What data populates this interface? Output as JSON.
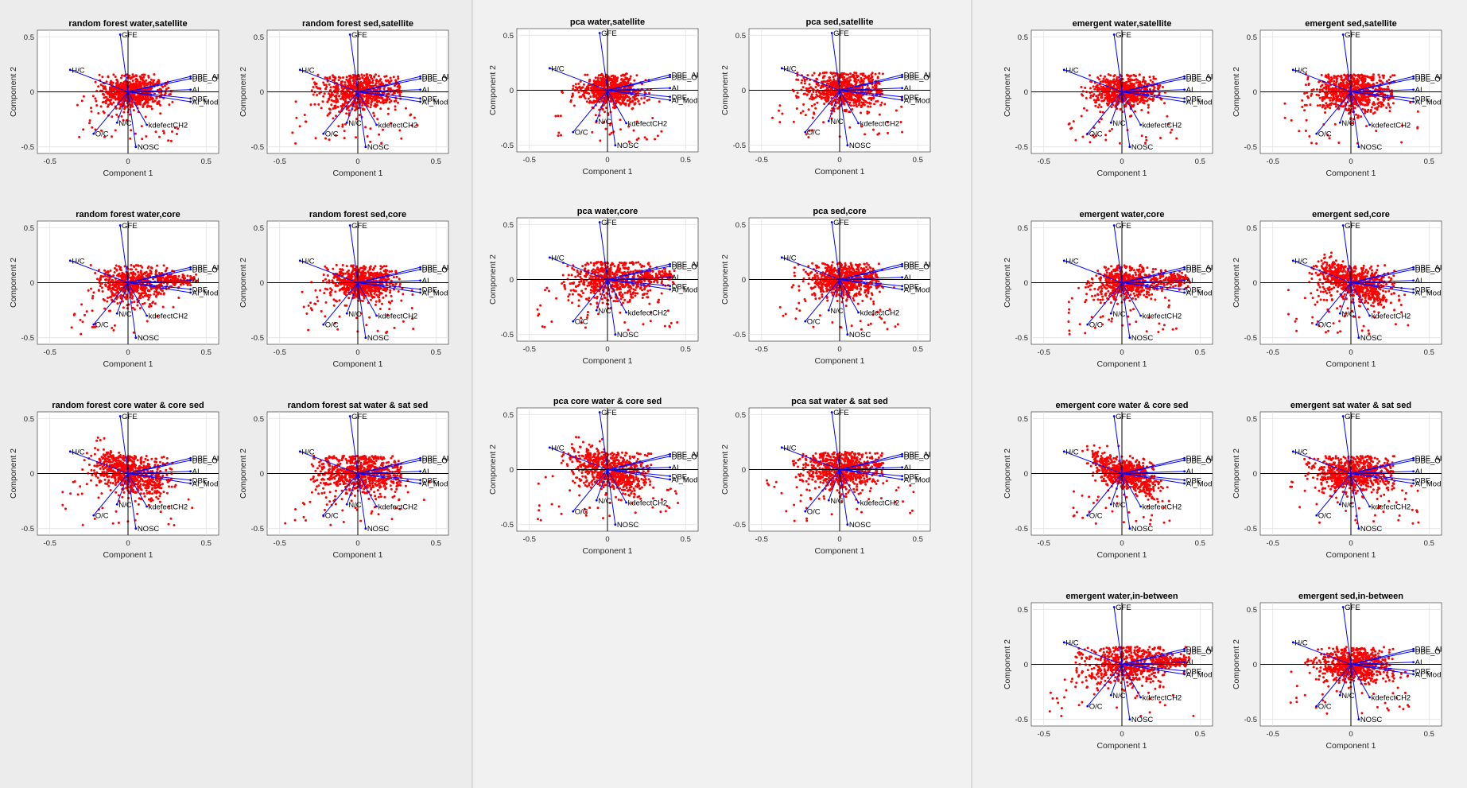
{
  "colors": {
    "points": "#ff0000",
    "vectors": "#0000ff",
    "axes": "#000000",
    "grid": "#e2e2e2"
  },
  "common": {
    "xlabel": "Component 1",
    "ylabel": "Component 2",
    "xticks": [
      "-0.5",
      "0",
      "0.5"
    ],
    "yticks": [
      "0.5",
      "0",
      "-0.5"
    ],
    "xlim": [
      -0.58,
      0.58
    ],
    "ylim": [
      -0.56,
      0.56
    ],
    "vectors": [
      {
        "label": "GFE",
        "x": -0.05,
        "y": 0.52
      },
      {
        "label": "H/C",
        "x": -0.37,
        "y": 0.2
      },
      {
        "label": "DBE_AI",
        "x": 0.4,
        "y": 0.14
      },
      {
        "label": "DBE_O",
        "x": 0.4,
        "y": 0.12
      },
      {
        "label": "AI",
        "x": 0.4,
        "y": 0.02
      },
      {
        "label": "DBE",
        "x": 0.4,
        "y": -0.06
      },
      {
        "label": "AI_Mod",
        "x": 0.4,
        "y": -0.09
      },
      {
        "label": "kdefectCH2",
        "x": 0.12,
        "y": -0.3
      },
      {
        "label": "N/C",
        "x": -0.07,
        "y": -0.28
      },
      {
        "label": "O/C",
        "x": -0.22,
        "y": -0.38
      },
      {
        "label": "NOSC",
        "x": 0.05,
        "y": -0.5
      }
    ]
  },
  "chart_data": [
    {
      "type": "scatter",
      "title": "random forest water,satellite",
      "shape": "blob",
      "spread": 1.0
    },
    {
      "type": "scatter",
      "title": "random forest sed,satellite",
      "shape": "blob",
      "spread": 1.25
    },
    {
      "type": "scatter",
      "title": "random forest water,core",
      "shape": "arm",
      "spread": 1.05
    },
    {
      "type": "scatter",
      "title": "random forest sed,core",
      "shape": "blob",
      "spread": 1.05
    },
    {
      "type": "scatter",
      "title": "random forest core water & core sed",
      "shape": "diag",
      "spread": 1.2
    },
    {
      "type": "scatter",
      "title": "random forest sat water & sat sed",
      "shape": "blob",
      "spread": 1.35
    },
    {
      "type": "scatter",
      "title": "pca water,satellite",
      "shape": "blob",
      "spread": 1.0
    },
    {
      "type": "scatter",
      "title": "pca sed,satellite",
      "shape": "blob",
      "spread": 1.25
    },
    {
      "type": "scatter",
      "title": "pca water,core",
      "shape": "arm",
      "spread": 1.3
    },
    {
      "type": "scatter",
      "title": "pca sed,core",
      "shape": "blob",
      "spread": 1.1
    },
    {
      "type": "scatter",
      "title": "pca core water & core sed",
      "shape": "diag",
      "spread": 1.3
    },
    {
      "type": "scatter",
      "title": "pca sat water & sat sed",
      "shape": "blob",
      "spread": 1.35
    },
    {
      "type": "scatter",
      "title": "emergent water,satellite",
      "shape": "blob",
      "spread": 1.0
    },
    {
      "type": "scatter",
      "title": "emergent sed,satellite",
      "shape": "blob",
      "spread": 1.25
    },
    {
      "type": "scatter",
      "title": "emergent water,core",
      "shape": "arm",
      "spread": 1.0
    },
    {
      "type": "scatter",
      "title": "emergent sed,core",
      "shape": "diag",
      "spread": 1.15
    },
    {
      "type": "scatter",
      "title": "emergent core water & core sed",
      "shape": "diag",
      "spread": 0.9
    },
    {
      "type": "scatter",
      "title": "emergent sat water & sat sed",
      "shape": "blob",
      "spread": 1.25
    },
    {
      "type": "scatter",
      "title": "emergent water,in-between",
      "shape": "arm",
      "spread": 1.35
    },
    {
      "type": "scatter",
      "title": "emergent sed,in-between",
      "shape": "blob",
      "spread": 1.1
    }
  ]
}
